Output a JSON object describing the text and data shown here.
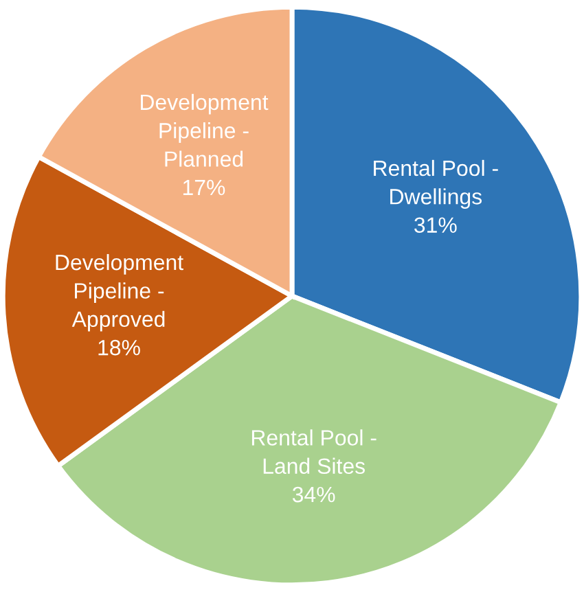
{
  "chart_data": {
    "type": "pie",
    "categories": [
      "Rental Pool -\nDwellings",
      "Rental Pool -\nLand Sites",
      "Development\nPipeline -\nApproved",
      "Development\nPipeline -\nPlanned"
    ],
    "values": [
      31,
      34,
      18,
      17
    ],
    "value_labels": [
      "31%",
      "34%",
      "18%",
      "17%"
    ],
    "colors": [
      "#2e75b6",
      "#a9d18e",
      "#c55a11",
      "#f4b183"
    ],
    "legend": false
  }
}
